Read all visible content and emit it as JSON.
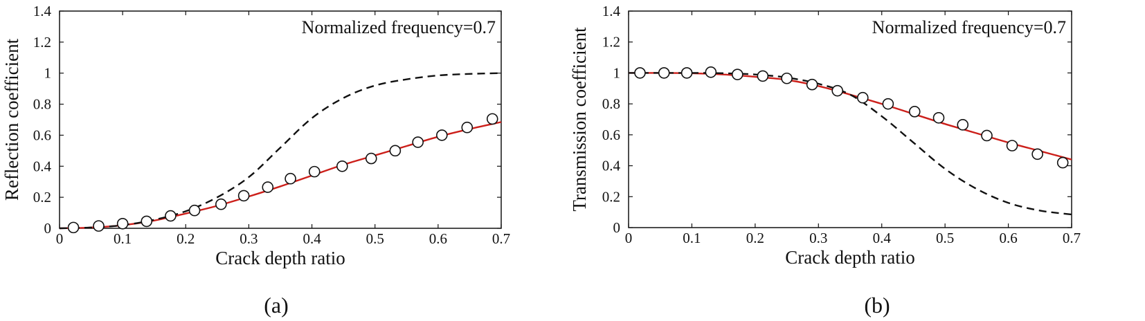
{
  "colors": {
    "model": "#cc1f1a",
    "dashed": "#111111",
    "marker_fill": "#ffffff",
    "marker_stroke": "#111111"
  },
  "chart_data": [
    {
      "type": "line",
      "panel_label": "(a)",
      "annotation": "Normalized frequency=0.7",
      "xlabel": "Crack depth ratio",
      "ylabel": "Reflection coefficient",
      "xlim": [
        0,
        0.7
      ],
      "ylim": [
        0,
        1.4
      ],
      "xticks": [
        0,
        0.1,
        0.2,
        0.3,
        0.4,
        0.5,
        0.6,
        0.7
      ],
      "xtick_labels": [
        "0",
        "0.1",
        "0.2",
        "0.3",
        "0.4",
        "0.5",
        "0.6",
        "0.7"
      ],
      "yticks": [
        0,
        0.2,
        0.4,
        0.6,
        0.8,
        1.0,
        1.2,
        1.4
      ],
      "ytick_labels": [
        "0",
        "0.2",
        "0.4",
        "0.6",
        "0.8",
        "1",
        "1.2",
        "1.4"
      ],
      "grid": false,
      "series": [
        {
          "style": "solid-red",
          "x": [
            0,
            0.05,
            0.1,
            0.15,
            0.2,
            0.25,
            0.3,
            0.35,
            0.4,
            0.45,
            0.5,
            0.55,
            0.6,
            0.65,
            0.7
          ],
          "y": [
            0,
            0.005,
            0.02,
            0.05,
            0.095,
            0.145,
            0.205,
            0.27,
            0.34,
            0.41,
            0.47,
            0.53,
            0.59,
            0.64,
            0.685
          ]
        },
        {
          "style": "dashed-black",
          "x": [
            0,
            0.05,
            0.1,
            0.15,
            0.2,
            0.25,
            0.3,
            0.35,
            0.4,
            0.45,
            0.5,
            0.55,
            0.6,
            0.65,
            0.7
          ],
          "y": [
            0,
            0.005,
            0.02,
            0.055,
            0.11,
            0.2,
            0.33,
            0.52,
            0.71,
            0.84,
            0.92,
            0.96,
            0.985,
            0.995,
            1.0
          ]
        },
        {
          "style": "open-circle",
          "x": [
            0.022,
            0.062,
            0.1,
            0.138,
            0.176,
            0.214,
            0.256,
            0.292,
            0.33,
            0.366,
            0.404,
            0.448,
            0.494,
            0.532,
            0.568,
            0.606,
            0.646,
            0.686
          ],
          "y": [
            0.005,
            0.015,
            0.03,
            0.045,
            0.08,
            0.115,
            0.155,
            0.21,
            0.265,
            0.32,
            0.365,
            0.4,
            0.45,
            0.5,
            0.555,
            0.6,
            0.65,
            0.705
          ]
        }
      ]
    },
    {
      "type": "line",
      "panel_label": "(b)",
      "annotation": "Normalized frequency=0.7",
      "xlabel": "Crack depth ratio",
      "ylabel": "Transmission coefficient",
      "xlim": [
        0,
        0.7
      ],
      "ylim": [
        0,
        1.4
      ],
      "xticks": [
        0,
        0.1,
        0.2,
        0.3,
        0.4,
        0.5,
        0.6,
        0.7
      ],
      "xtick_labels": [
        "0",
        "0.1",
        "0.2",
        "0.3",
        "0.4",
        "0.5",
        "0.6",
        "0.7"
      ],
      "yticks": [
        0,
        0.2,
        0.4,
        0.6,
        0.8,
        1.0,
        1.2,
        1.4
      ],
      "ytick_labels": [
        "0",
        "0.2",
        "0.4",
        "0.6",
        "0.8",
        "1",
        "1.2",
        "1.4"
      ],
      "grid": false,
      "series": [
        {
          "style": "solid-red",
          "x": [
            0,
            0.05,
            0.1,
            0.15,
            0.2,
            0.25,
            0.3,
            0.35,
            0.4,
            0.45,
            0.5,
            0.55,
            0.6,
            0.65,
            0.7
          ],
          "y": [
            1.0,
            1.0,
            0.998,
            0.99,
            0.975,
            0.955,
            0.915,
            0.86,
            0.8,
            0.735,
            0.67,
            0.61,
            0.55,
            0.495,
            0.44
          ]
        },
        {
          "style": "dashed-black",
          "x": [
            0,
            0.05,
            0.1,
            0.15,
            0.2,
            0.25,
            0.3,
            0.35,
            0.4,
            0.45,
            0.5,
            0.55,
            0.6,
            0.65,
            0.7
          ],
          "y": [
            1.0,
            1.0,
            1.0,
            0.998,
            0.99,
            0.97,
            0.93,
            0.86,
            0.72,
            0.55,
            0.38,
            0.25,
            0.16,
            0.11,
            0.085
          ]
        },
        {
          "style": "open-circle",
          "x": [
            0.018,
            0.056,
            0.092,
            0.13,
            0.172,
            0.212,
            0.25,
            0.29,
            0.33,
            0.37,
            0.41,
            0.452,
            0.49,
            0.528,
            0.566,
            0.606,
            0.646,
            0.686
          ],
          "y": [
            1.0,
            1.0,
            1.0,
            1.005,
            0.99,
            0.98,
            0.965,
            0.925,
            0.885,
            0.84,
            0.8,
            0.75,
            0.71,
            0.665,
            0.595,
            0.53,
            0.475,
            0.42
          ]
        }
      ]
    }
  ]
}
